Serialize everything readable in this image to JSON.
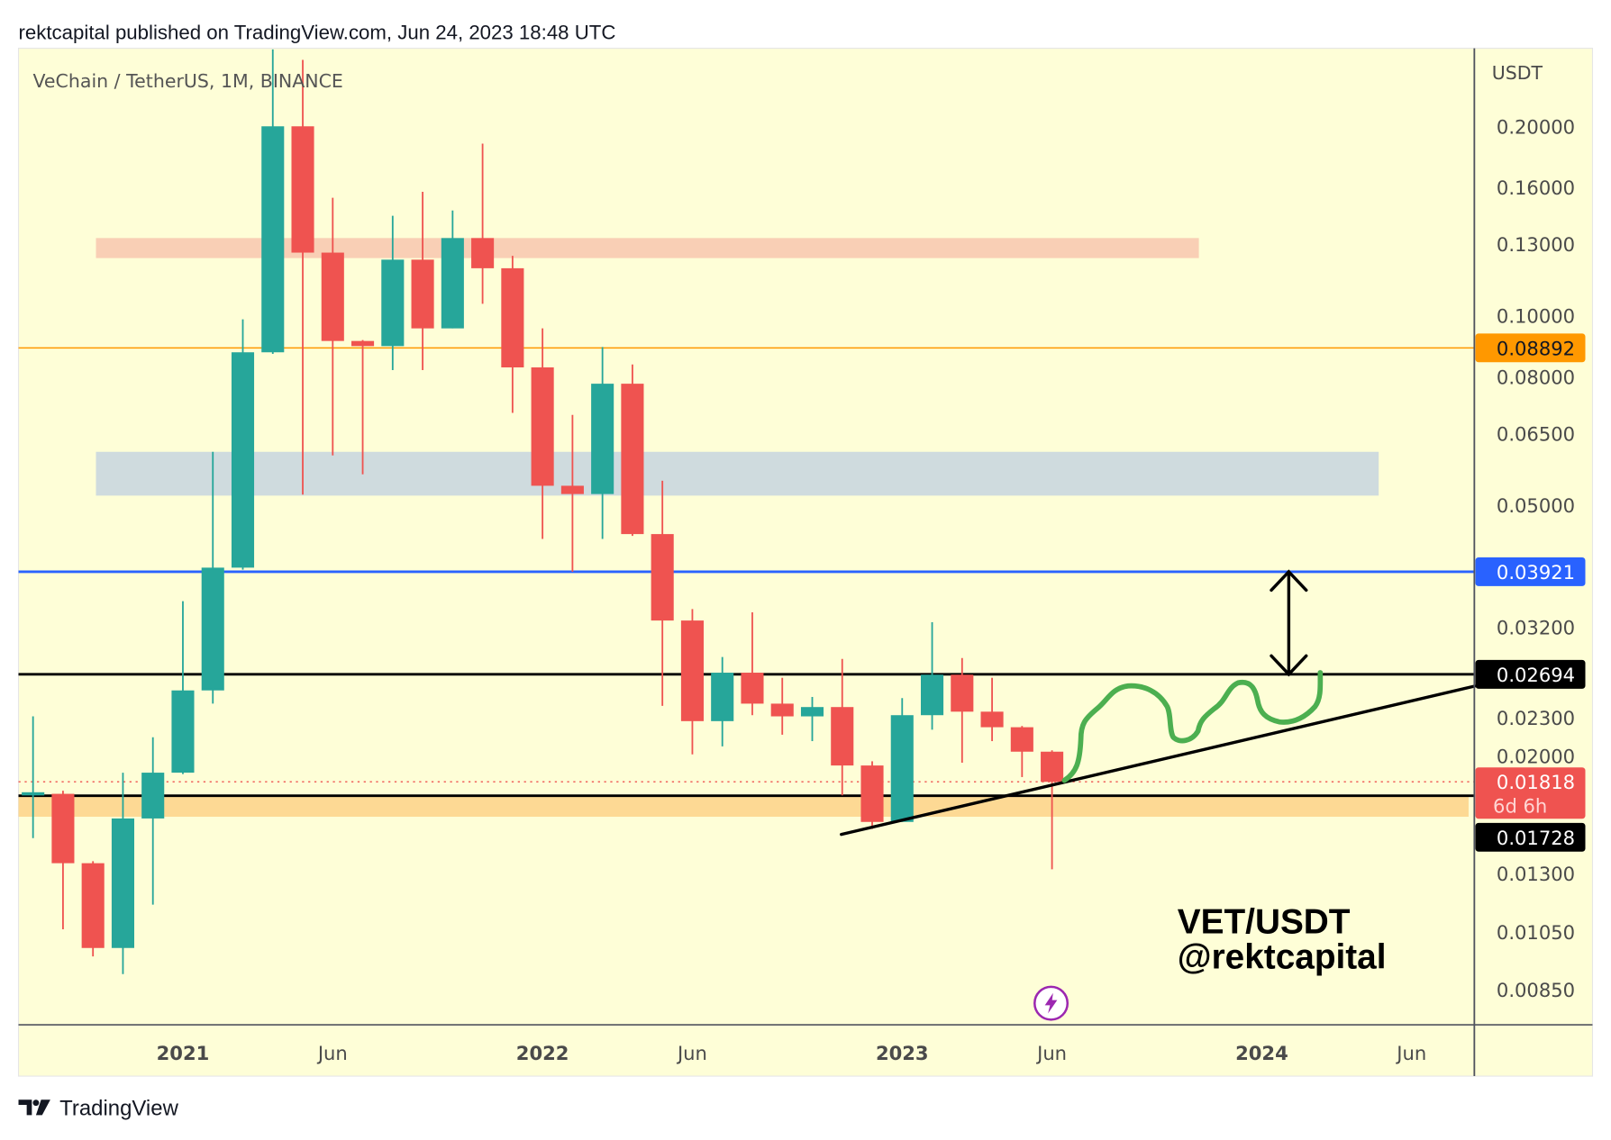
{
  "header": {
    "published": "rektcapital published on TradingView.com, Jun 24, 2023 18:48 UTC"
  },
  "footer": {
    "brand": "TradingView"
  },
  "colors": {
    "background": "#fefed7",
    "up": "#26a69a",
    "down": "#ef5350",
    "orange_level": "#ff9800",
    "blue_level": "#2962ff",
    "squiggle": "#4caf50",
    "event_icon": "#9c27b0"
  },
  "chart_data": {
    "type": "candlestick",
    "title": "VeChain / TetherUS, 1M, BINANCE",
    "scale": "log",
    "ylabel": "USDT",
    "ylim": [
      0.0075,
      0.27
    ],
    "grid": false,
    "price_ticks": [
      "0.20000",
      "0.16000",
      "0.13000",
      "0.10000",
      "0.08000",
      "0.06500",
      "0.05000",
      "0.03200",
      "0.02300",
      "0.02000",
      "0.01300",
      "0.01050",
      "0.00850"
    ],
    "time_ticks": [
      {
        "label": "2021",
        "month": 0,
        "year": true
      },
      {
        "label": "Jun",
        "month": 5,
        "year": false
      },
      {
        "label": "2022",
        "month": 12,
        "year": true
      },
      {
        "label": "Jun",
        "month": 17,
        "year": false
      },
      {
        "label": "2023",
        "month": 24,
        "year": true
      },
      {
        "label": "Jun",
        "month": 29,
        "year": false
      },
      {
        "label": "2024",
        "month": 36,
        "year": true
      },
      {
        "label": "Jun",
        "month": 41,
        "year": false
      }
    ],
    "candles": [
      {
        "t": "2020-08",
        "o": 0.0173,
        "h": 0.0231,
        "l": 0.0148,
        "c": 0.0175
      },
      {
        "t": "2020-09",
        "o": 0.0174,
        "h": 0.0176,
        "l": 0.0106,
        "c": 0.0135
      },
      {
        "t": "2020-10",
        "o": 0.0135,
        "h": 0.0136,
        "l": 0.0096,
        "c": 0.0099
      },
      {
        "t": "2020-11",
        "o": 0.0099,
        "h": 0.0188,
        "l": 0.009,
        "c": 0.0159
      },
      {
        "t": "2020-12",
        "o": 0.0159,
        "h": 0.0214,
        "l": 0.0116,
        "c": 0.0188
      },
      {
        "t": "2021-01",
        "o": 0.0188,
        "h": 0.0352,
        "l": 0.0187,
        "c": 0.0254
      },
      {
        "t": "2021-02",
        "o": 0.0254,
        "h": 0.0608,
        "l": 0.0242,
        "c": 0.0398
      },
      {
        "t": "2021-03",
        "o": 0.0398,
        "h": 0.0987,
        "l": 0.0395,
        "c": 0.0875
      },
      {
        "t": "2021-04",
        "o": 0.0875,
        "h": 0.265,
        "l": 0.087,
        "c": 0.2
      },
      {
        "t": "2021-05",
        "o": 0.2,
        "h": 0.255,
        "l": 0.052,
        "c": 0.126
      },
      {
        "t": "2021-06",
        "o": 0.126,
        "h": 0.154,
        "l": 0.06,
        "c": 0.0912
      },
      {
        "t": "2021-07",
        "o": 0.0912,
        "h": 0.0915,
        "l": 0.056,
        "c": 0.0895
      },
      {
        "t": "2021-08",
        "o": 0.0895,
        "h": 0.1442,
        "l": 0.082,
        "c": 0.1228
      },
      {
        "t": "2021-09",
        "o": 0.1228,
        "h": 0.1574,
        "l": 0.082,
        "c": 0.0955
      },
      {
        "t": "2021-10",
        "o": 0.0955,
        "h": 0.147,
        "l": 0.0955,
        "c": 0.1329
      },
      {
        "t": "2021-11",
        "o": 0.1329,
        "h": 0.1877,
        "l": 0.1045,
        "c": 0.119
      },
      {
        "t": "2021-12",
        "o": 0.119,
        "h": 0.1245,
        "l": 0.0701,
        "c": 0.0828
      },
      {
        "t": "2022-01",
        "o": 0.0828,
        "h": 0.0955,
        "l": 0.0442,
        "c": 0.0537
      },
      {
        "t": "2022-02",
        "o": 0.0537,
        "h": 0.0696,
        "l": 0.0392,
        "c": 0.0521
      },
      {
        "t": "2022-03",
        "o": 0.0521,
        "h": 0.0892,
        "l": 0.0442,
        "c": 0.078
      },
      {
        "t": "2022-04",
        "o": 0.078,
        "h": 0.0837,
        "l": 0.0447,
        "c": 0.045
      },
      {
        "t": "2022-05",
        "o": 0.045,
        "h": 0.0547,
        "l": 0.024,
        "c": 0.0328
      },
      {
        "t": "2022-06",
        "o": 0.0328,
        "h": 0.0342,
        "l": 0.0201,
        "c": 0.0227
      },
      {
        "t": "2022-07",
        "o": 0.0227,
        "h": 0.0287,
        "l": 0.0207,
        "c": 0.0271
      },
      {
        "t": "2022-08",
        "o": 0.0271,
        "h": 0.0338,
        "l": 0.0232,
        "c": 0.0242
      },
      {
        "t": "2022-09",
        "o": 0.0242,
        "h": 0.0266,
        "l": 0.0216,
        "c": 0.0231
      },
      {
        "t": "2022-10",
        "o": 0.0231,
        "h": 0.0248,
        "l": 0.0211,
        "c": 0.0239
      },
      {
        "t": "2022-11",
        "o": 0.0239,
        "h": 0.0285,
        "l": 0.0173,
        "c": 0.0193
      },
      {
        "t": "2022-12",
        "o": 0.0193,
        "h": 0.0196,
        "l": 0.0153,
        "c": 0.0157
      },
      {
        "t": "2023-01",
        "o": 0.0157,
        "h": 0.0247,
        "l": 0.0157,
        "c": 0.0232
      },
      {
        "t": "2023-02",
        "o": 0.0232,
        "h": 0.0326,
        "l": 0.022,
        "c": 0.0269
      },
      {
        "t": "2023-03",
        "o": 0.0269,
        "h": 0.0286,
        "l": 0.0195,
        "c": 0.0235
      },
      {
        "t": "2023-04",
        "o": 0.0235,
        "h": 0.0266,
        "l": 0.0211,
        "c": 0.0222
      },
      {
        "t": "2023-05",
        "o": 0.0222,
        "h": 0.0223,
        "l": 0.0185,
        "c": 0.0203
      },
      {
        "t": "2023-06",
        "o": 0.0203,
        "h": 0.0204,
        "l": 0.0132,
        "c": 0.01818
      }
    ],
    "zones": [
      {
        "name": "resistance-zone-pink",
        "from": 0.1235,
        "to": 0.1329,
        "start_month": -2.9,
        "end_month": 33.9,
        "color": "#f9cfb5"
      },
      {
        "name": "resistance-zone-gray",
        "from": 0.0518,
        "to": 0.0608,
        "start_month": -2.9,
        "end_month": 39.9,
        "color": "#cfdbde"
      },
      {
        "name": "support-zone-orange",
        "from": 0.016,
        "to": 0.01728,
        "start_month": -5.5,
        "end_month": 42.9,
        "color": "#fdd994"
      }
    ],
    "levels": [
      {
        "name": "level-0.08892",
        "price": 0.08892,
        "label": "0.08892",
        "color": "#ff9800",
        "text": "#131722",
        "width": 1.3
      },
      {
        "name": "level-0.03921",
        "price": 0.03921,
        "label": "0.03921",
        "color": "#2962ff",
        "text": "#ffffff",
        "width": 2.5
      },
      {
        "name": "level-0.02694",
        "price": 0.02694,
        "label": "0.02694",
        "color": "#000000",
        "text": "#ffffff",
        "width": 2.5
      },
      {
        "name": "level-0.01728",
        "price": 0.01728,
        "label": "0.01728",
        "color": "#000000",
        "text": "#ffffff",
        "width": 2.5
      }
    ],
    "last_price": {
      "price": 0.01818,
      "label": "0.01818",
      "countdown": "6d 6h",
      "color": "#ef5350"
    },
    "trendline": {
      "start": {
        "month": 21.97,
        "price": 0.015
      },
      "end": {
        "month": 43.1,
        "price": 0.0258
      }
    },
    "target_arrow": {
      "month": 36.9,
      "from": 0.02694,
      "to": 0.03921
    },
    "annotations": {
      "pair": "VET/USDT",
      "author": "@rektcapital"
    }
  }
}
